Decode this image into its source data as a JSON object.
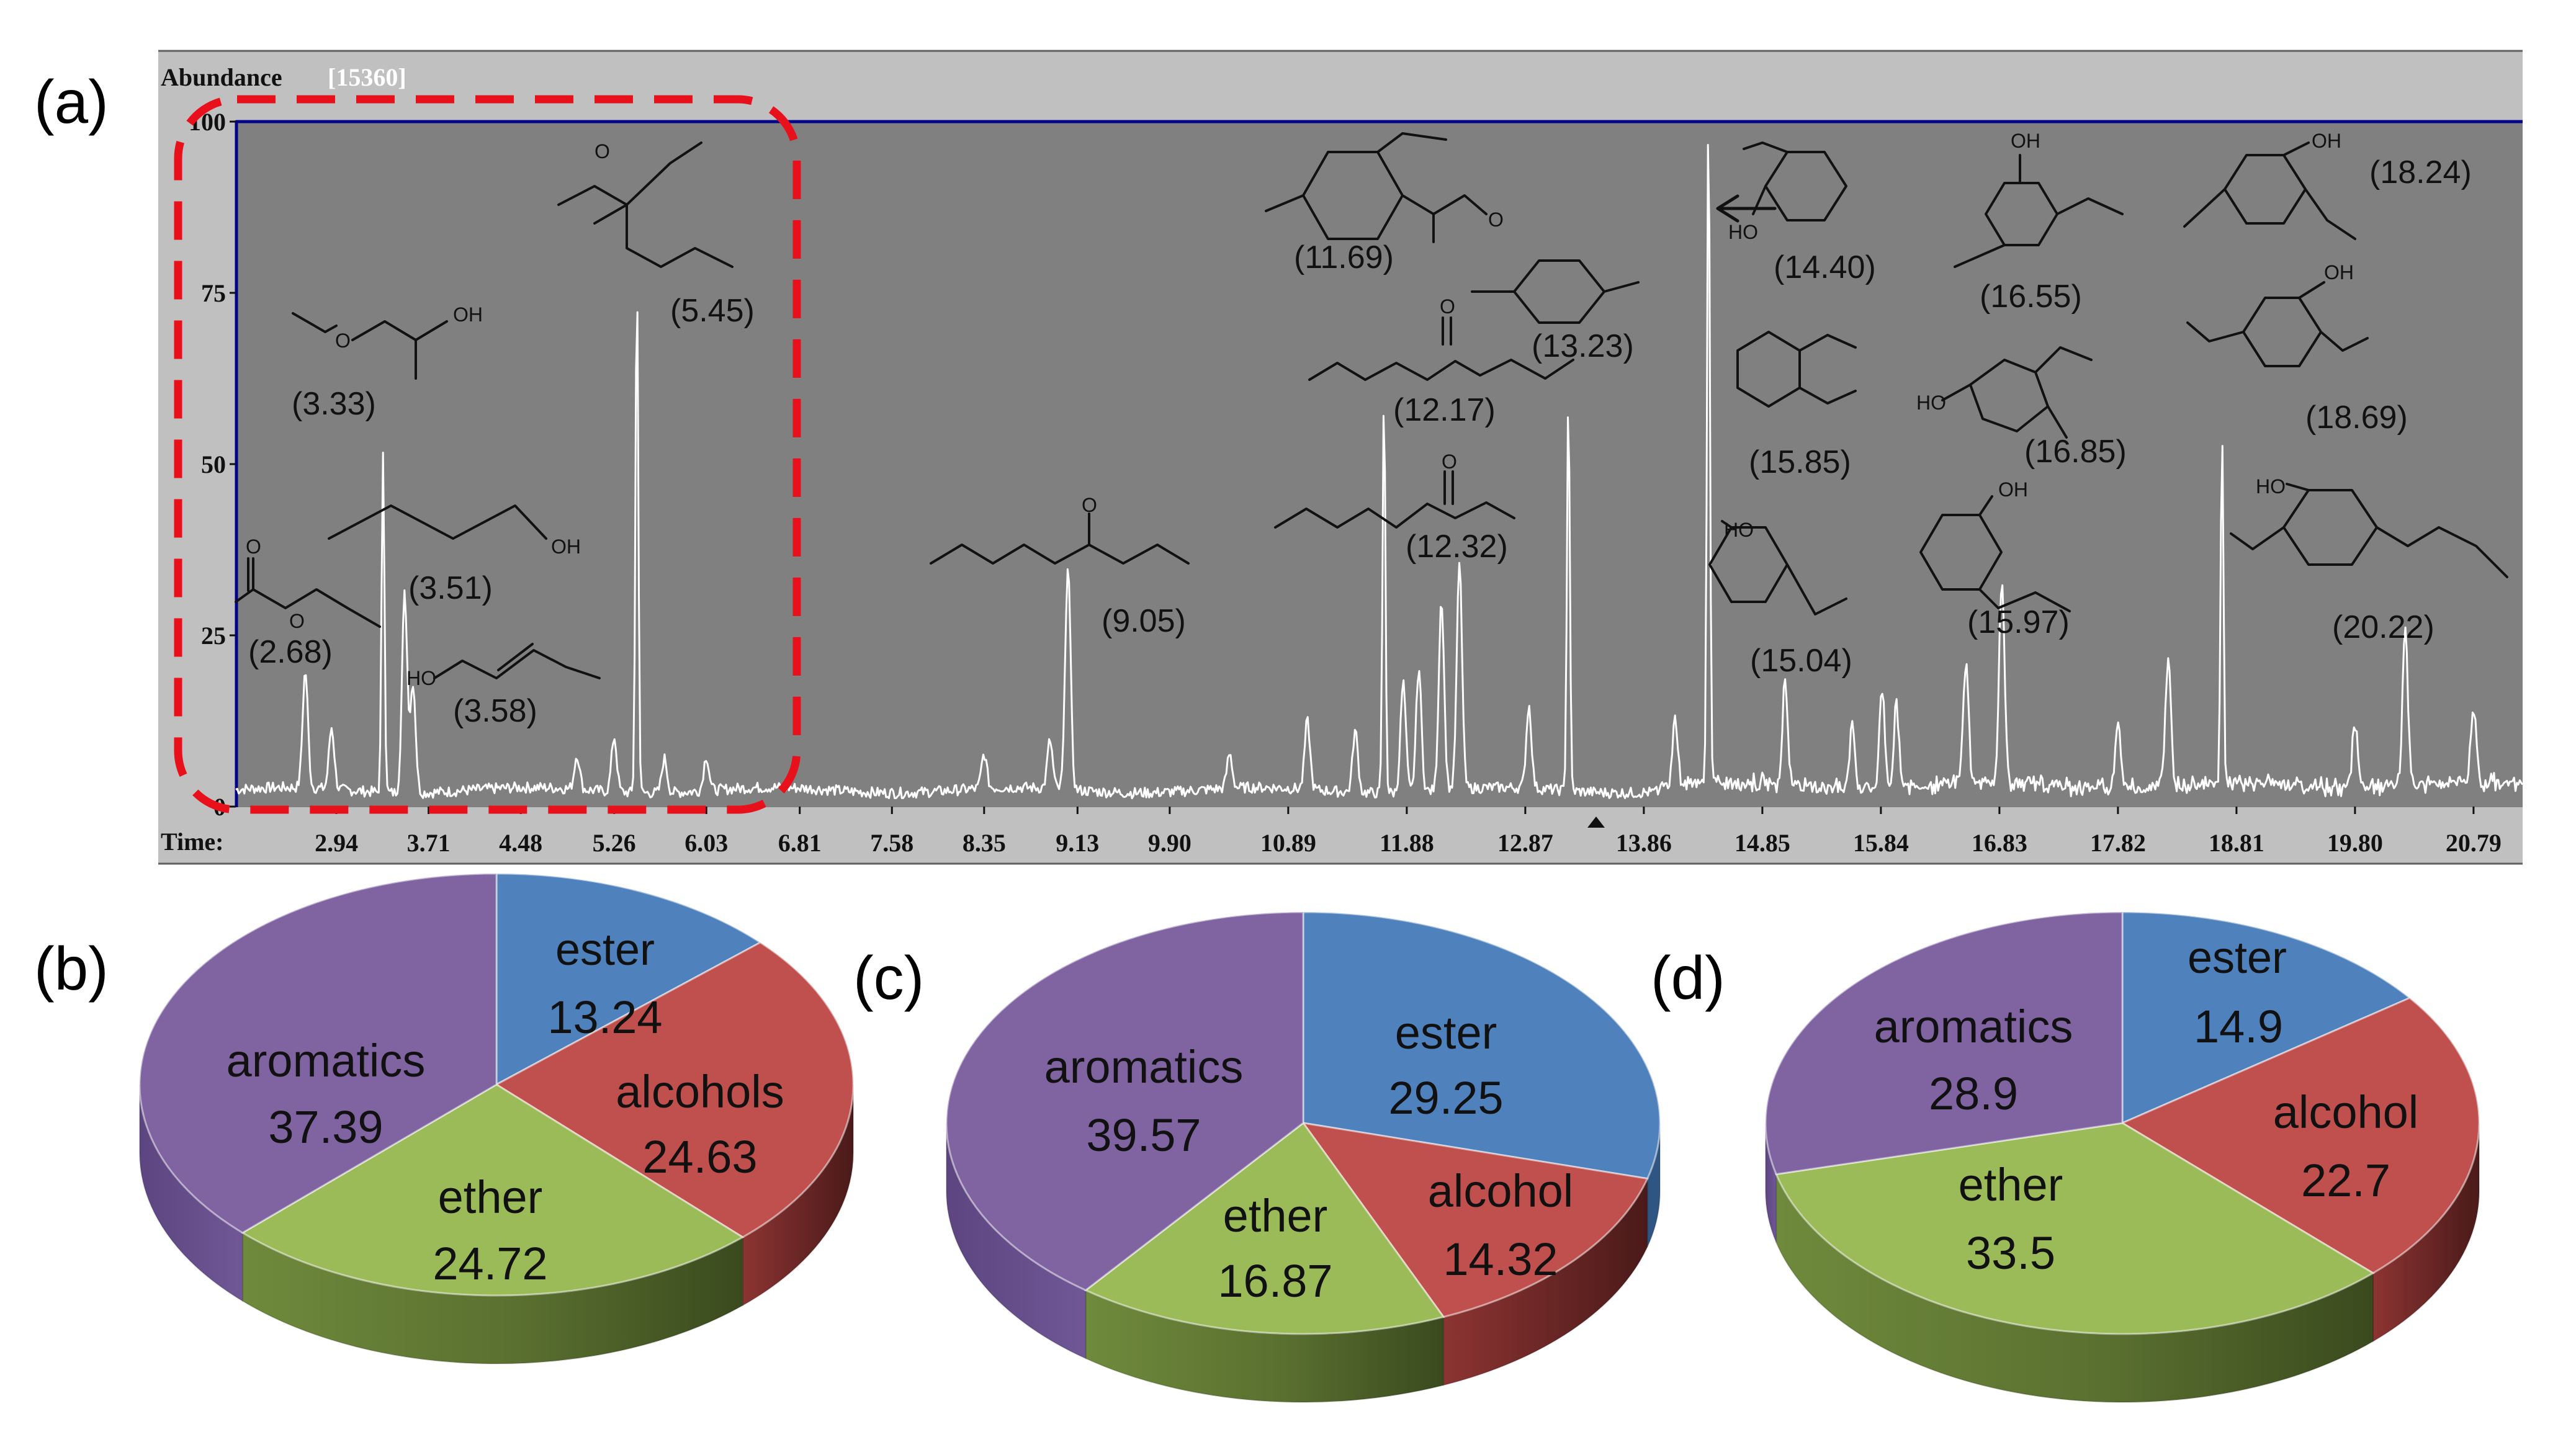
{
  "panels": {
    "a": "(a)",
    "b": "(b)",
    "c": "(c)",
    "d": "(d)"
  },
  "chromatogram": {
    "abundance_label": "Abundance",
    "abundance_value": "[15360]",
    "time_label": "Time:",
    "y_ticks": [
      "0",
      "25",
      "50",
      "75",
      "100"
    ],
    "x_ticks": [
      "2.94",
      "3.71",
      "4.48",
      "5.26",
      "6.03",
      "6.81",
      "7.58",
      "8.35",
      "9.13",
      "9.90",
      "10.89",
      "11.88",
      "12.87",
      "13.86",
      "14.85",
      "15.84",
      "16.83",
      "17.82",
      "18.81",
      "19.80",
      "20.79"
    ]
  },
  "chart_data": [
    {
      "type": "line",
      "title": "(a)",
      "xlabel": "Time:",
      "ylabel": "Abundance [15360]",
      "xlim": [
        2.1,
        21.2
      ],
      "ylim": [
        0,
        100
      ],
      "peaks": [
        {
          "x": 2.68,
          "y": 17
        },
        {
          "x": 2.9,
          "y": 9
        },
        {
          "x": 3.33,
          "y": 50
        },
        {
          "x": 3.51,
          "y": 29
        },
        {
          "x": 3.58,
          "y": 16
        },
        {
          "x": 4.95,
          "y": 5
        },
        {
          "x": 5.26,
          "y": 8
        },
        {
          "x": 5.45,
          "y": 75
        },
        {
          "x": 5.68,
          "y": 5
        },
        {
          "x": 6.03,
          "y": 5
        },
        {
          "x": 8.35,
          "y": 5
        },
        {
          "x": 8.9,
          "y": 7
        },
        {
          "x": 9.05,
          "y": 33
        },
        {
          "x": 10.4,
          "y": 5
        },
        {
          "x": 11.05,
          "y": 10
        },
        {
          "x": 11.45,
          "y": 9
        },
        {
          "x": 11.69,
          "y": 58
        },
        {
          "x": 11.85,
          "y": 16
        },
        {
          "x": 11.98,
          "y": 18
        },
        {
          "x": 12.17,
          "y": 28
        },
        {
          "x": 12.32,
          "y": 33
        },
        {
          "x": 12.9,
          "y": 12
        },
        {
          "x": 13.23,
          "y": 58
        },
        {
          "x": 14.12,
          "y": 10
        },
        {
          "x": 14.4,
          "y": 100
        },
        {
          "x": 15.04,
          "y": 15
        },
        {
          "x": 15.6,
          "y": 9
        },
        {
          "x": 15.85,
          "y": 14
        },
        {
          "x": 15.97,
          "y": 12
        },
        {
          "x": 16.55,
          "y": 18
        },
        {
          "x": 16.85,
          "y": 30
        },
        {
          "x": 17.82,
          "y": 10
        },
        {
          "x": 18.24,
          "y": 19
        },
        {
          "x": 18.69,
          "y": 51
        },
        {
          "x": 19.8,
          "y": 10
        },
        {
          "x": 20.22,
          "y": 23
        },
        {
          "x": 20.79,
          "y": 11
        }
      ],
      "peak_labels": [
        "(2.68)",
        "(3.33)",
        "(3.51)",
        "(3.58)",
        "(5.45)",
        "(9.05)",
        "(11.69)",
        "(12.17)",
        "(12.32)",
        "(13.23)",
        "(14.40)",
        "(15.85)",
        "(15.04)",
        "(15.97)",
        "(16.55)",
        "(16.85)",
        "(18.24)",
        "(18.69)",
        "(20.22)"
      ],
      "atom_labels": {
        "oh": "OH",
        "ho": "HO",
        "o": "O"
      }
    },
    {
      "type": "pie",
      "title": "(b)",
      "slices": [
        {
          "label": "ester",
          "value": 13.24,
          "color": "#4f81bd"
        },
        {
          "label": "alcohols",
          "value": 24.63,
          "color": "#c0504d"
        },
        {
          "label": "ether",
          "value": 24.72,
          "color": "#9bbb59"
        },
        {
          "label": "aromatics",
          "value": 37.39,
          "color": "#8064a2"
        }
      ]
    },
    {
      "type": "pie",
      "title": "(c)",
      "slices": [
        {
          "label": "ester",
          "value": 29.25,
          "color": "#4f81bd"
        },
        {
          "label": "alcohol",
          "value": 14.32,
          "color": "#c0504d"
        },
        {
          "label": "ether",
          "value": 16.87,
          "color": "#9bbb59"
        },
        {
          "label": "aromatics",
          "value": 39.57,
          "color": "#8064a2"
        }
      ]
    },
    {
      "type": "pie",
      "title": "(d)",
      "slices": [
        {
          "label": "ester",
          "value": 14.9,
          "color": "#4f81bd"
        },
        {
          "label": "alcohol",
          "value": 22.7,
          "color": "#c0504d"
        },
        {
          "label": "ether",
          "value": 33.5,
          "color": "#9bbb59"
        },
        {
          "label": "aromatics",
          "value": 28.9,
          "color": "#8064a2"
        }
      ]
    }
  ]
}
